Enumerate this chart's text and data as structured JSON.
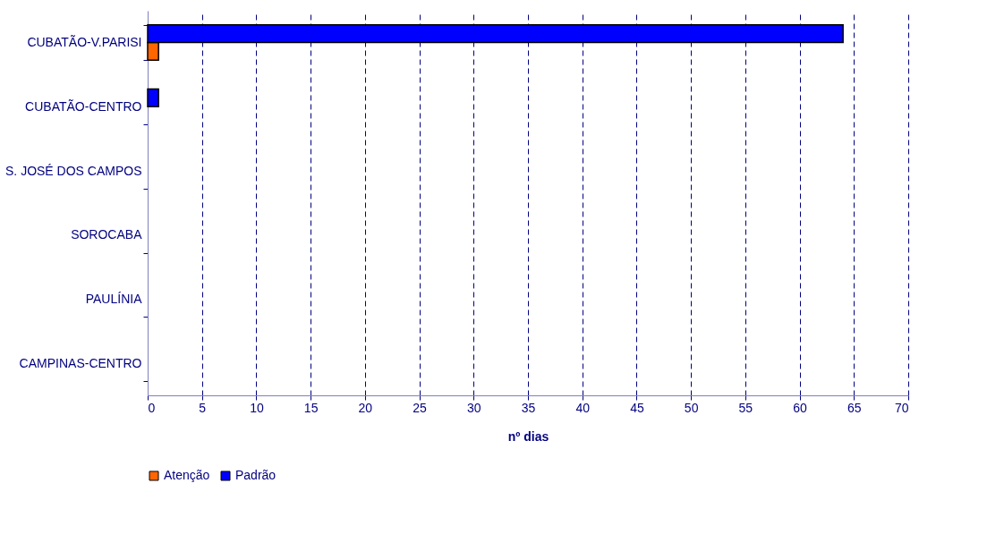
{
  "chart_data": {
    "type": "bar",
    "orientation": "horizontal",
    "xlabel": "nº dias",
    "categories": [
      "CUBATÃO-V.PARISI",
      "CUBATÃO-CENTRO",
      "S. JOSÉ DOS CAMPOS",
      "SOROCABA",
      "PAULÍNIA",
      "CAMPINAS-CENTRO"
    ],
    "series": [
      {
        "name": "Atenção",
        "color": "#ff6600",
        "values": [
          1,
          0,
          0,
          0,
          0,
          0
        ]
      },
      {
        "name": "Padrão",
        "color": "#0000ff",
        "values": [
          64,
          1,
          0,
          0,
          0,
          0
        ]
      }
    ],
    "xlim": [
      0,
      70
    ],
    "xticks": [
      0,
      5,
      10,
      15,
      20,
      25,
      30,
      35,
      40,
      45,
      50,
      55,
      60,
      65,
      70
    ],
    "grid": "x",
    "legend": "bottom"
  }
}
